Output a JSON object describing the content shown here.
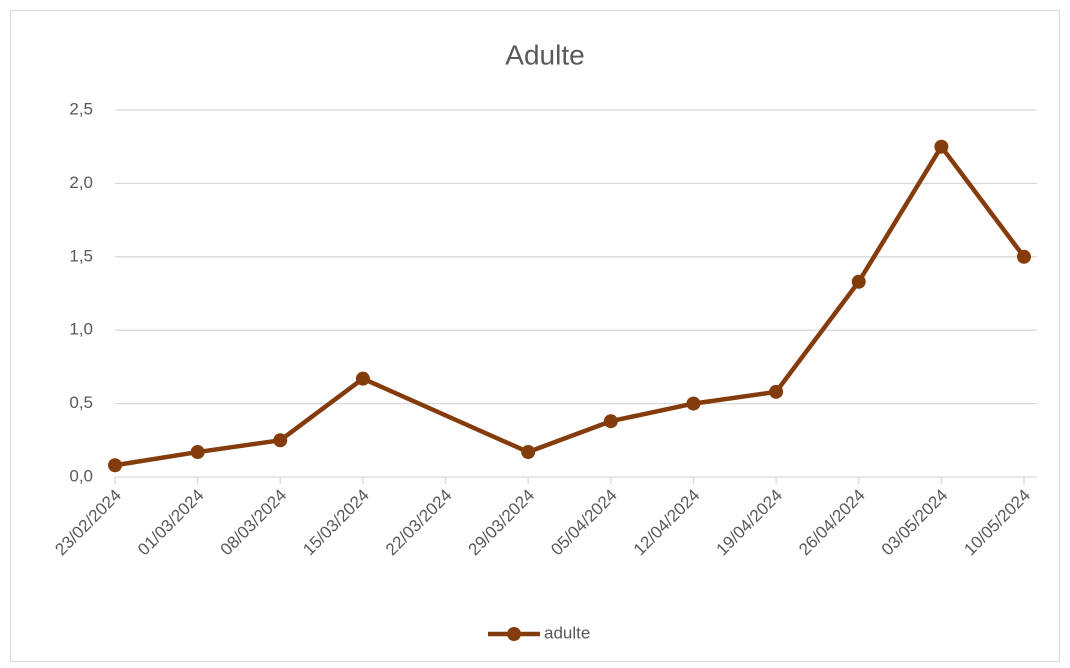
{
  "chart_data": {
    "type": "line",
    "title": "Adulte",
    "x": [
      "23/02/2024",
      "01/03/2024",
      "08/03/2024",
      "15/03/2024",
      "29/03/2024",
      "05/04/2024",
      "12/04/2024",
      "19/04/2024",
      "26/04/2024",
      "03/05/2024",
      "10/05/2024"
    ],
    "series": [
      {
        "name": "adulte",
        "color": "#843c0c",
        "values": [
          0.08,
          0.17,
          0.25,
          0.67,
          0.17,
          0.38,
          0.5,
          0.58,
          1.33,
          2.25,
          1.5
        ]
      }
    ],
    "xlim": [
      "23/02/2024",
      "10/05/2024"
    ],
    "xticks": [
      "23/02/2024",
      "01/03/2024",
      "08/03/2024",
      "15/03/2024",
      "22/03/2024",
      "29/03/2024",
      "05/04/2024",
      "12/04/2024",
      "19/04/2024",
      "26/04/2024",
      "03/05/2024",
      "10/05/2024"
    ],
    "ylim": [
      0,
      2.5
    ],
    "yticks": [
      {
        "value": 0,
        "label": "0,0"
      },
      {
        "value": 0.5,
        "label": "0,5"
      },
      {
        "value": 1,
        "label": "1,0"
      },
      {
        "value": 1.5,
        "label": "1,5"
      },
      {
        "value": 2,
        "label": "2,0"
      },
      {
        "value": 2.5,
        "label": "2,5"
      }
    ],
    "grid": true,
    "legend": "bottom"
  }
}
